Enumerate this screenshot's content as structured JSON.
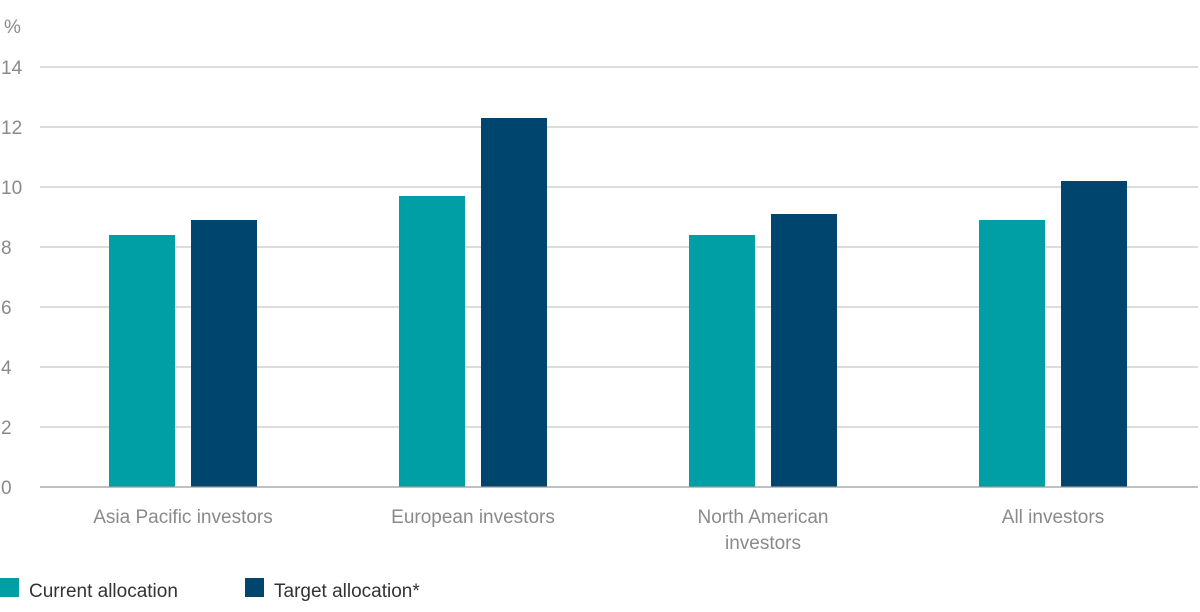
{
  "chart_data": {
    "type": "bar",
    "ylabel": "%",
    "ylim": [
      0,
      14
    ],
    "yticks": [
      0,
      2,
      4,
      6,
      8,
      10,
      12,
      14
    ],
    "categories": [
      [
        "Asia Pacific investors"
      ],
      [
        "European investors"
      ],
      [
        "North American",
        "investors"
      ],
      [
        "All investors"
      ]
    ],
    "series": [
      {
        "name": "Current allocation",
        "color": "#009ea5",
        "values": [
          8.4,
          9.7,
          8.4,
          8.9
        ]
      },
      {
        "name": "Target allocation*",
        "color": "#00456e",
        "values": [
          8.9,
          12.3,
          9.1,
          10.2
        ]
      }
    ],
    "grid": true,
    "legend": "bottom-left"
  }
}
